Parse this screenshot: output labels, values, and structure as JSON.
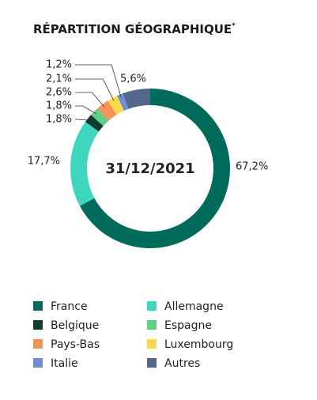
{
  "chart_data": {
    "type": "donut",
    "title": "RÉPARTITION GÉOGRAPHIQUE",
    "title_mark": "*",
    "center_label": "31/12/2021",
    "categories": [
      "France",
      "Allemagne",
      "Belgique",
      "Espagne",
      "Pays-Bas",
      "Luxembourg",
      "Italie",
      "Autres"
    ],
    "values": [
      67.2,
      17.7,
      1.8,
      1.8,
      2.6,
      2.1,
      1.2,
      5.6
    ],
    "value_labels": [
      "67,2%",
      "17,7%",
      "1,8%",
      "1,8%",
      "2,6%",
      "2,1%",
      "1,2%",
      "5,6%"
    ],
    "colors": [
      "#006b5a",
      "#3fd6c0",
      "#0d3b2e",
      "#5fcf85",
      "#f4935a",
      "#ffd84d",
      "#6f8fd4",
      "#52688a"
    ]
  }
}
